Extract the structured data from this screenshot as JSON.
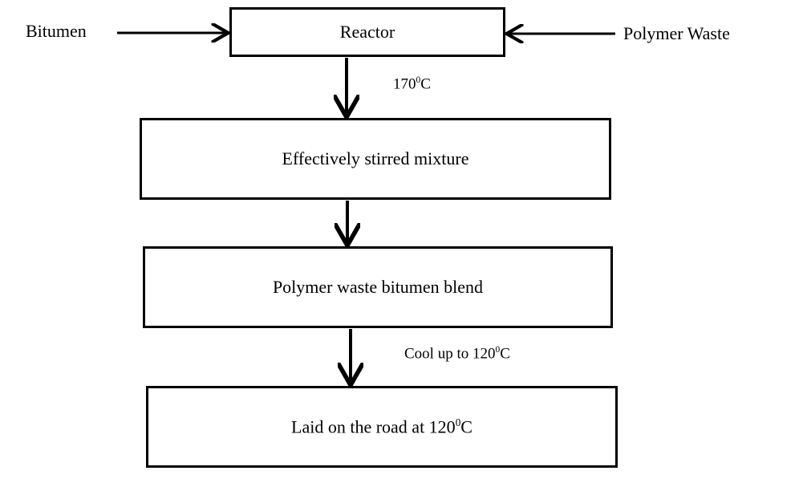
{
  "inputs": {
    "left": "Bitumen",
    "right": "Polymer Waste"
  },
  "steps": {
    "reactor": "Reactor",
    "stirred": "Effectively stirred mixture",
    "blend": "Polymer waste bitumen blend",
    "laid": {
      "text": "Laid on the road at 120",
      "sup": "0",
      "unit": "C"
    }
  },
  "annotations": {
    "heat": {
      "text": "170",
      "sup": "0",
      "unit": "C"
    },
    "cool": {
      "text": "Cool up to 120",
      "sup": "0",
      "unit": "C"
    }
  }
}
